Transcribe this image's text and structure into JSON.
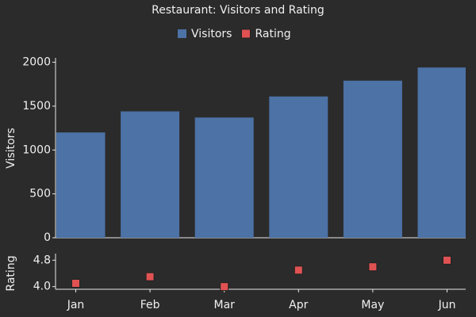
{
  "chart_data": {
    "type": "bar",
    "title": "Restaurant: Visitors and Rating",
    "categories": [
      "Jan",
      "Feb",
      "Mar",
      "Apr",
      "May",
      "Jun"
    ],
    "series": [
      {
        "name": "Visitors",
        "color": "#4c72a6",
        "values": [
          1200,
          1440,
          1370,
          1610,
          1790,
          1940
        ]
      },
      {
        "name": "Rating",
        "color": "#e05252",
        "axis": "y2",
        "values": [
          4.1,
          4.3,
          4.0,
          4.5,
          4.6,
          4.8
        ]
      }
    ],
    "ylabel": "Visitors",
    "ylim": [
      0,
      2050
    ],
    "yticks": [
      0,
      500,
      1000,
      1500,
      2000
    ],
    "y2label": "Rating",
    "y2lim": [
      3.92,
      5.0
    ],
    "y2ticks": [
      {
        "value": 4.0,
        "label": "4.0"
      },
      4.8
    ]
  }
}
